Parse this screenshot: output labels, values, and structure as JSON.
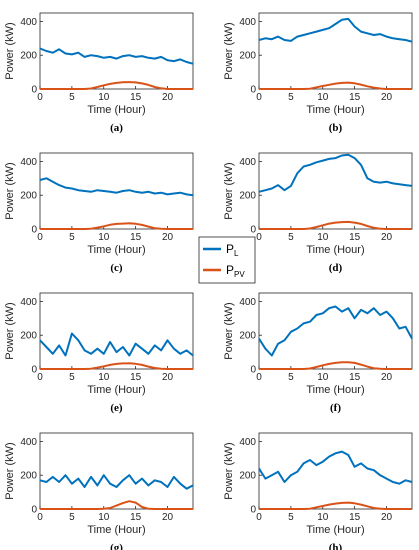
{
  "legend": {
    "load": {
      "base": "P",
      "sub": "L",
      "color": "#0072BD"
    },
    "pv": {
      "base": "P",
      "sub": "PV",
      "color": "#D95319"
    }
  },
  "chart_data": [
    {
      "type": "line",
      "panel_label": "(a)",
      "xlabel": "Time (Hour)",
      "ylabel": "Power (kW)",
      "xlim": [
        0,
        24
      ],
      "ylim": [
        0,
        450
      ],
      "xticks": [
        0,
        5,
        10,
        15,
        20
      ],
      "yticks": [
        0,
        200,
        400
      ],
      "x": [
        0,
        1,
        2,
        3,
        4,
        5,
        6,
        7,
        8,
        9,
        10,
        11,
        12,
        13,
        14,
        15,
        16,
        17,
        18,
        19,
        20,
        21,
        22,
        23,
        24
      ],
      "series": [
        {
          "name": "P_L",
          "values": [
            240,
            225,
            215,
            235,
            210,
            205,
            215,
            190,
            200,
            195,
            185,
            190,
            180,
            195,
            200,
            190,
            195,
            185,
            180,
            190,
            170,
            165,
            175,
            160,
            150
          ]
        },
        {
          "name": "P_PV",
          "values": [
            0,
            0,
            0,
            0,
            0,
            0,
            0,
            0,
            3,
            12,
            22,
            30,
            36,
            40,
            41,
            39,
            33,
            24,
            12,
            4,
            0,
            0,
            0,
            0,
            0
          ]
        }
      ]
    },
    {
      "type": "line",
      "panel_label": "(b)",
      "xlabel": "Time (Hour)",
      "ylabel": "Power (kW)",
      "xlim": [
        0,
        24
      ],
      "ylim": [
        0,
        450
      ],
      "xticks": [
        0,
        5,
        10,
        15,
        20
      ],
      "yticks": [
        0,
        200,
        400
      ],
      "x": [
        0,
        1,
        2,
        3,
        4,
        5,
        6,
        7,
        8,
        9,
        10,
        11,
        12,
        13,
        14,
        15,
        16,
        17,
        18,
        19,
        20,
        21,
        22,
        23,
        24
      ],
      "series": [
        {
          "name": "P_L",
          "values": [
            290,
            300,
            295,
            310,
            290,
            285,
            310,
            320,
            330,
            340,
            350,
            360,
            385,
            410,
            415,
            370,
            340,
            330,
            320,
            325,
            310,
            300,
            295,
            290,
            280
          ]
        },
        {
          "name": "P_PV",
          "values": [
            0,
            0,
            0,
            0,
            0,
            0,
            0,
            0,
            2,
            10,
            18,
            25,
            32,
            36,
            38,
            34,
            26,
            16,
            8,
            3,
            0,
            0,
            0,
            0,
            0
          ]
        }
      ]
    },
    {
      "type": "line",
      "panel_label": "(c)",
      "xlabel": "Time (Hour)",
      "ylabel": "Power (kW)",
      "xlim": [
        0,
        24
      ],
      "ylim": [
        0,
        450
      ],
      "xticks": [
        0,
        5,
        10,
        15,
        20
      ],
      "yticks": [
        0,
        200,
        400
      ],
      "x": [
        0,
        1,
        2,
        3,
        4,
        5,
        6,
        7,
        8,
        9,
        10,
        11,
        12,
        13,
        14,
        15,
        16,
        17,
        18,
        19,
        20,
        21,
        22,
        23,
        24
      ],
      "series": [
        {
          "name": "P_L",
          "values": [
            290,
            300,
            280,
            260,
            245,
            240,
            230,
            225,
            220,
            230,
            225,
            220,
            215,
            225,
            230,
            220,
            215,
            220,
            210,
            215,
            205,
            210,
            215,
            205,
            200
          ]
        },
        {
          "name": "P_PV",
          "values": [
            0,
            0,
            0,
            0,
            0,
            0,
            0,
            0,
            2,
            8,
            16,
            25,
            30,
            32,
            34,
            31,
            24,
            14,
            5,
            1,
            0,
            0,
            0,
            0,
            0
          ]
        }
      ]
    },
    {
      "type": "line",
      "panel_label": "(d)",
      "xlabel": "Time (Hour)",
      "ylabel": "Power (kW)",
      "xlim": [
        0,
        24
      ],
      "ylim": [
        0,
        450
      ],
      "xticks": [
        0,
        5,
        10,
        15,
        20
      ],
      "yticks": [
        0,
        200,
        400
      ],
      "x": [
        0,
        1,
        2,
        3,
        4,
        5,
        6,
        7,
        8,
        9,
        10,
        11,
        12,
        13,
        14,
        15,
        16,
        17,
        18,
        19,
        20,
        21,
        22,
        23,
        24
      ],
      "series": [
        {
          "name": "P_L",
          "values": [
            220,
            230,
            240,
            260,
            230,
            255,
            330,
            370,
            380,
            395,
            405,
            415,
            420,
            435,
            440,
            420,
            380,
            300,
            280,
            275,
            280,
            270,
            265,
            260,
            255
          ]
        },
        {
          "name": "P_PV",
          "values": [
            0,
            0,
            0,
            0,
            0,
            0,
            0,
            0,
            3,
            12,
            22,
            32,
            38,
            41,
            42,
            38,
            30,
            18,
            7,
            2,
            0,
            0,
            0,
            0,
            0
          ]
        }
      ]
    },
    {
      "type": "line",
      "panel_label": "(e)",
      "xlabel": "Time (Hour)",
      "ylabel": "Power (kW)",
      "xlim": [
        0,
        24
      ],
      "ylim": [
        0,
        450
      ],
      "xticks": [
        0,
        5,
        10,
        15,
        20
      ],
      "yticks": [
        0,
        200,
        400
      ],
      "x": [
        0,
        1,
        2,
        3,
        4,
        5,
        6,
        7,
        8,
        9,
        10,
        11,
        12,
        13,
        14,
        15,
        16,
        17,
        18,
        19,
        20,
        21,
        22,
        23,
        24
      ],
      "series": [
        {
          "name": "P_L",
          "values": [
            170,
            130,
            90,
            140,
            80,
            210,
            170,
            110,
            90,
            120,
            90,
            160,
            100,
            130,
            80,
            150,
            120,
            90,
            140,
            110,
            170,
            120,
            90,
            110,
            80
          ]
        },
        {
          "name": "P_PV",
          "values": [
            0,
            0,
            0,
            0,
            0,
            0,
            0,
            0,
            2,
            8,
            16,
            24,
            30,
            33,
            34,
            31,
            24,
            14,
            6,
            1,
            0,
            0,
            0,
            0,
            0
          ]
        }
      ]
    },
    {
      "type": "line",
      "panel_label": "(f)",
      "xlabel": "Time (Hour)",
      "ylabel": "Power (kW)",
      "xlim": [
        0,
        24
      ],
      "ylim": [
        0,
        450
      ],
      "xticks": [
        0,
        5,
        10,
        15,
        20
      ],
      "yticks": [
        0,
        200,
        400
      ],
      "x": [
        0,
        1,
        2,
        3,
        4,
        5,
        6,
        7,
        8,
        9,
        10,
        11,
        12,
        13,
        14,
        15,
        16,
        17,
        18,
        19,
        20,
        21,
        22,
        23,
        24
      ],
      "series": [
        {
          "name": "P_L",
          "values": [
            180,
            120,
            80,
            150,
            170,
            220,
            240,
            270,
            280,
            320,
            330,
            360,
            370,
            340,
            360,
            300,
            350,
            330,
            360,
            320,
            340,
            300,
            240,
            250,
            180
          ]
        },
        {
          "name": "P_PV",
          "values": [
            0,
            0,
            0,
            0,
            0,
            0,
            0,
            0,
            3,
            12,
            22,
            30,
            36,
            40,
            40,
            36,
            26,
            14,
            5,
            1,
            0,
            0,
            0,
            0,
            0
          ]
        }
      ]
    },
    {
      "type": "line",
      "panel_label": "(g)",
      "xlabel": "Time (Hour)",
      "ylabel": "Power (kW)",
      "xlim": [
        0,
        24
      ],
      "ylim": [
        0,
        450
      ],
      "xticks": [
        0,
        5,
        10,
        15,
        20
      ],
      "yticks": [
        0,
        200,
        400
      ],
      "x": [
        0,
        1,
        2,
        3,
        4,
        5,
        6,
        7,
        8,
        9,
        10,
        11,
        12,
        13,
        14,
        15,
        16,
        17,
        18,
        19,
        20,
        21,
        22,
        23,
        24
      ],
      "series": [
        {
          "name": "P_L",
          "values": [
            170,
            160,
            190,
            160,
            200,
            150,
            180,
            130,
            190,
            140,
            200,
            150,
            130,
            170,
            200,
            150,
            180,
            140,
            170,
            160,
            130,
            190,
            150,
            120,
            140
          ]
        },
        {
          "name": "P_PV",
          "values": [
            0,
            0,
            0,
            0,
            0,
            0,
            0,
            0,
            0,
            0,
            2,
            6,
            20,
            35,
            46,
            38,
            12,
            2,
            0,
            0,
            0,
            0,
            0,
            0,
            0
          ]
        }
      ]
    },
    {
      "type": "line",
      "panel_label": "(h)",
      "xlabel": "Time (Hour)",
      "ylabel": "Power (kW)",
      "xlim": [
        0,
        24
      ],
      "ylim": [
        0,
        450
      ],
      "xticks": [
        0,
        5,
        10,
        15,
        20
      ],
      "yticks": [
        0,
        200,
        400
      ],
      "x": [
        0,
        1,
        2,
        3,
        4,
        5,
        6,
        7,
        8,
        9,
        10,
        11,
        12,
        13,
        14,
        15,
        16,
        17,
        18,
        19,
        20,
        21,
        22,
        23,
        24
      ],
      "series": [
        {
          "name": "P_L",
          "values": [
            240,
            180,
            200,
            220,
            160,
            200,
            220,
            270,
            290,
            260,
            280,
            310,
            330,
            340,
            320,
            250,
            270,
            240,
            230,
            200,
            180,
            160,
            150,
            170,
            160
          ]
        },
        {
          "name": "P_PV",
          "values": [
            0,
            0,
            0,
            0,
            0,
            0,
            0,
            0,
            2,
            10,
            18,
            26,
            32,
            36,
            38,
            34,
            26,
            16,
            6,
            2,
            0,
            0,
            0,
            0,
            0
          ]
        }
      ]
    }
  ]
}
